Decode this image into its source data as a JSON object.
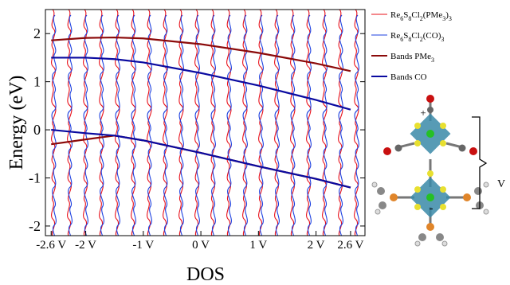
{
  "chart_data": {
    "type": "line",
    "xlabel": "DOS",
    "ylabel": "Energy (eV)",
    "xlim": [
      -2.7,
      2.85
    ],
    "ylim": [
      -2.2,
      2.5
    ],
    "xticks": [
      {
        "value": -2.6,
        "label": "-2.6 V"
      },
      {
        "value": -2,
        "label": "-2 V"
      },
      {
        "value": -1,
        "label": "-1 V"
      },
      {
        "value": 0,
        "label": "0 V"
      },
      {
        "value": 1,
        "label": "1 V"
      },
      {
        "value": 2,
        "label": "2 V"
      },
      {
        "value": 2.6,
        "label": "2.6 V"
      }
    ],
    "yticks": [
      -2,
      -1,
      0,
      1,
      2
    ],
    "x": [
      -2.6,
      -2,
      -1.5,
      -1,
      0,
      1,
      2,
      2.6
    ],
    "series": [
      {
        "name": "Re6S8Cl2(PMe3)3",
        "color": "#e8101a"
      },
      {
        "name": "Re6S8Cl2(CO)3",
        "color": "#1b3fe0"
      },
      {
        "name": "Bands PMe3",
        "color": "#8b0a0a",
        "bands": [
          [
            1.86,
            1.91,
            1.92,
            1.9,
            1.78,
            1.6,
            1.38,
            1.22
          ],
          [
            -0.3,
            -0.2,
            -0.12,
            -0.22,
            -0.48,
            -0.76,
            -1.02,
            -1.2
          ]
        ]
      },
      {
        "name": "Bands CO",
        "color": "#0a0aa0",
        "bands": [
          [
            1.5,
            1.5,
            1.47,
            1.4,
            1.18,
            0.92,
            0.62,
            0.42
          ],
          [
            0.0,
            -0.07,
            -0.12,
            -0.22,
            -0.48,
            -0.76,
            -1.02,
            -1.2
          ]
        ]
      }
    ],
    "annotations": [
      "+",
      "-",
      "V"
    ]
  }
}
